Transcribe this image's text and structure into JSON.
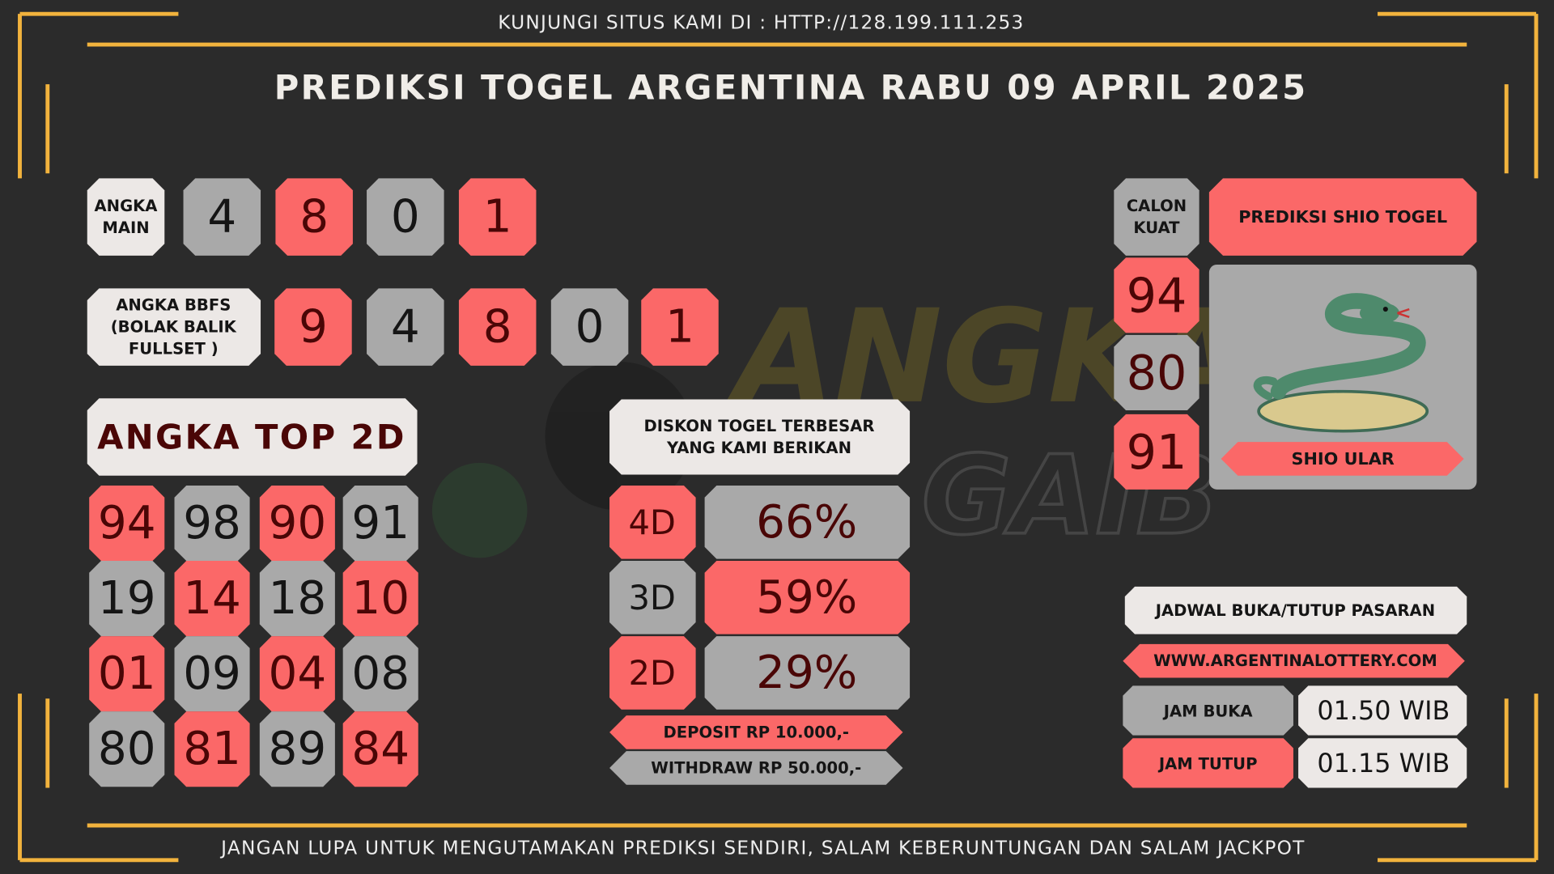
{
  "header": {
    "visit": "KUNJUNGI SITUS KAMI DI : HTTP://128.199.111.253",
    "title": "PREDIKSI TOGEL ARGENTINA RABU 09 APRIL 2025"
  },
  "angka_main": {
    "label": [
      "ANGKA",
      "MAIN"
    ],
    "digits": [
      "4",
      "8",
      "0",
      "1"
    ]
  },
  "bbfs": {
    "label": [
      "ANGKA BBFS",
      "(BOLAK BALIK",
      "FULLSET )"
    ],
    "digits": [
      "9",
      "4",
      "8",
      "0",
      "1"
    ]
  },
  "top2d": {
    "title": "ANGKA TOP 2D",
    "rows": [
      [
        "94",
        "98",
        "90",
        "91"
      ],
      [
        "19",
        "14",
        "18",
        "10"
      ],
      [
        "01",
        "09",
        "04",
        "08"
      ],
      [
        "80",
        "81",
        "89",
        "84"
      ]
    ]
  },
  "diskon": {
    "title": [
      "DISKON TOGEL TERBESAR",
      "YANG KAMI BERIKAN"
    ],
    "rows": [
      {
        "label": "4D",
        "value": "66%"
      },
      {
        "label": "3D",
        "value": "59%"
      },
      {
        "label": "2D",
        "value": "29%"
      }
    ],
    "deposit": "DEPOSIT RP 10.000,-",
    "withdraw": "WITHDRAW RP 50.000,-"
  },
  "calon_kuat": {
    "label": [
      "CALON",
      "KUAT"
    ],
    "numbers": [
      "94",
      "80",
      "91"
    ]
  },
  "shio": {
    "title": "PREDIKSI SHIO TOGEL",
    "name": "SHIO ULAR"
  },
  "jadwal": {
    "title": "JADWAL BUKA/TUTUP PASARAN",
    "url": "WWW.ARGENTINALOTTERY.COM",
    "buka_label": "JAM BUKA",
    "buka": "01.50 WIB",
    "tutup_label": "JAM TUTUP",
    "tutup": "01.15 WIB"
  },
  "footer": "JANGAN LUPA UNTUK MENGUTAMAKAN PREDIKSI SENDIRI, SALAM KEBERUNTUNGAN DAN SALAM JACKPOT"
}
